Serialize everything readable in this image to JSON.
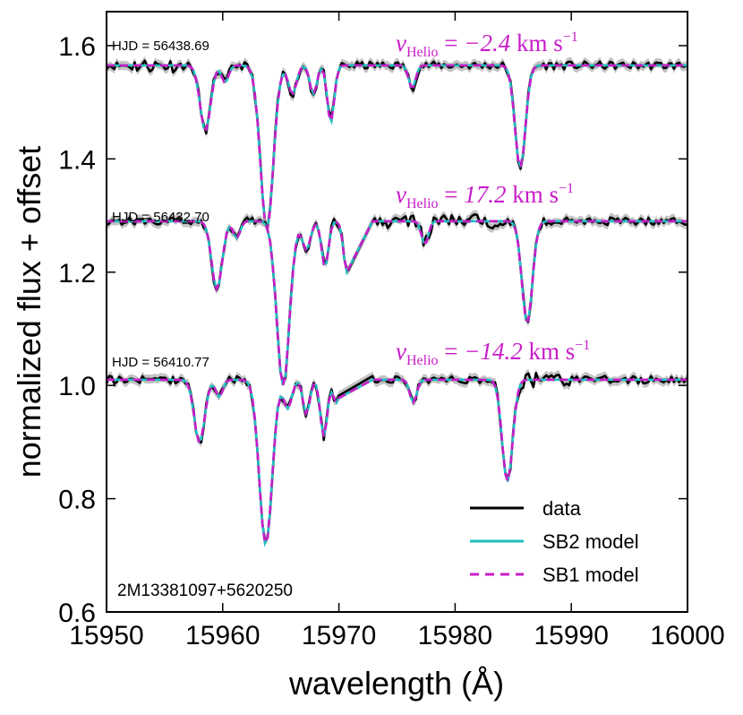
{
  "chart_data": {
    "type": "line",
    "title": "",
    "star_id": "2M13381097+5620250",
    "xlabel": "wavelength (Å)",
    "ylabel": "normalized flux + offset",
    "xlim": [
      15950,
      16000
    ],
    "ylim": [
      0.6,
      1.66
    ],
    "xticks": [
      15950,
      15960,
      15970,
      15980,
      15990,
      16000
    ],
    "xtick_labels": [
      "15950",
      "15960",
      "15970",
      "15980",
      "15990",
      "16000"
    ],
    "yticks": [
      0.6,
      0.8,
      1.0,
      1.2,
      1.4,
      1.6
    ],
    "ytick_labels": [
      "0.6",
      "0.8",
      "1.0",
      "1.2",
      "1.4",
      "1.6"
    ],
    "colors": {
      "data": "#000000",
      "data_error": "#a9a9a9",
      "sb2": "#1fbfbf",
      "sb1": "#c81cc8"
    },
    "legend": [
      {
        "key": "data",
        "label": "data"
      },
      {
        "key": "sb2",
        "label": "SB2 model"
      },
      {
        "key": "sb1",
        "label": "SB1 model"
      }
    ],
    "epochs": [
      {
        "hjd_label": "HJD = 56438.69",
        "velocity": {
          "symbol": "v",
          "subscript": "Helio",
          "equals": "=",
          "value": "−2.4",
          "unit": "km s",
          "exponent": "−1"
        },
        "continuum": 1.565,
        "dips": [
          [
            15958.5,
            0.115,
            0.45
          ],
          [
            15960.2,
            0.03,
            0.3
          ],
          [
            15963.8,
            0.29,
            0.55
          ],
          [
            15966.0,
            0.05,
            0.35
          ],
          [
            15967.8,
            0.05,
            0.3
          ],
          [
            15969.3,
            0.1,
            0.3
          ],
          [
            15976.3,
            0.04,
            0.3
          ],
          [
            15985.6,
            0.18,
            0.45
          ]
        ],
        "gap": null,
        "extra_noise": [
          15952,
          15956
        ]
      },
      {
        "hjd_label": "HJD = 56432.70",
        "velocity": {
          "symbol": "v",
          "subscript": "Helio",
          "equals": "=",
          "value": "17.2",
          "unit": "km s",
          "exponent": "−1"
        },
        "continuum": 1.29,
        "dips": [
          [
            15959.5,
            0.12,
            0.45
          ],
          [
            15961.2,
            0.03,
            0.3
          ],
          [
            15965.2,
            0.29,
            0.55
          ],
          [
            15967.2,
            0.05,
            0.35
          ],
          [
            15968.8,
            0.08,
            0.3
          ],
          [
            15970.7,
            0.09,
            0.3
          ],
          [
            15977.4,
            0.04,
            0.3
          ],
          [
            15986.2,
            0.18,
            0.45
          ]
        ],
        "gap": [
          15970.8,
          15972.9
        ],
        "extra_noise": [
          15974,
          15984
        ]
      },
      {
        "hjd_label": "HJD = 56410.77",
        "velocity": {
          "symbol": "v",
          "subscript": "Helio",
          "equals": "=",
          "value": "−14.2",
          "unit": "km s",
          "exponent": "−1"
        },
        "continuum": 1.01,
        "dips": [
          [
            15958.0,
            0.11,
            0.45
          ],
          [
            15959.7,
            0.03,
            0.3
          ],
          [
            15963.7,
            0.29,
            0.55
          ],
          [
            15965.6,
            0.05,
            0.35
          ],
          [
            15967.2,
            0.06,
            0.3
          ],
          [
            15968.7,
            0.1,
            0.3
          ],
          [
            15969.8,
            0.04,
            0.3
          ],
          [
            15976.4,
            0.04,
            0.3
          ],
          [
            15984.5,
            0.18,
            0.45
          ]
        ],
        "gap": [
          15970.0,
          15972.9
        ],
        "extra_noise": [
          15985,
          15990
        ]
      }
    ]
  }
}
